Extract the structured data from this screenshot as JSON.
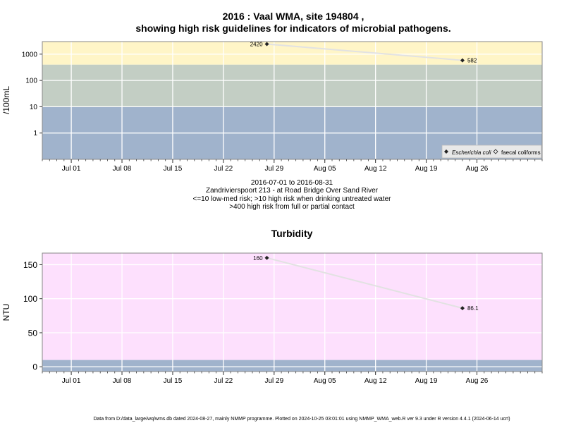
{
  "chart_data": [
    {
      "type": "scatter",
      "title_line1": "2016 : Vaal WMA, site 194804 ,",
      "title_line2": "showing high risk guidelines for indicators of microbial pathogens.",
      "ylabel": "/100mL",
      "yscale": "log",
      "yticks": [
        1,
        10,
        100,
        1000
      ],
      "ytick_labels": [
        "1",
        "10",
        "100",
        "1000"
      ],
      "ylim": [
        0.1,
        3000
      ],
      "x_ticks": [
        "Jul 01",
        "Jul 08",
        "Jul 15",
        "Jul 22",
        "Jul 29",
        "Aug 05",
        "Aug 12",
        "Aug 19",
        "Aug 26"
      ],
      "x_tick_dates": [
        "2016-07-01",
        "2016-07-08",
        "2016-07-15",
        "2016-07-22",
        "2016-07-29",
        "2016-08-05",
        "2016-08-12",
        "2016-08-19",
        "2016-08-26"
      ],
      "xlim": [
        "2016-06-27",
        "2016-09-04"
      ],
      "bands": [
        {
          "from": 0.1,
          "to": 10,
          "color": "#a0b3cc"
        },
        {
          "from": 10,
          "to": 400,
          "color": "#c3cec4"
        },
        {
          "from": 400,
          "to": 3000,
          "color": "#fff5c7"
        }
      ],
      "series": [
        {
          "name": "Escherichia coli",
          "color": "#222222",
          "points": [
            {
              "x": "2016-07-28",
              "y": 2420,
              "label": "2420"
            },
            {
              "x": "2016-08-24",
              "y": 582,
              "label": "582"
            }
          ]
        }
      ],
      "legend": {
        "placement": "bottom-right",
        "entries": [
          "Escherichia coli",
          "faecal coliforms"
        ]
      },
      "caption_lines": [
        "2016-07-01 to 2016-08-31",
        "Zandrivierspoort 213 - at Road Bridge Over Sand River",
        "<=10 low-med risk; >10 high risk when drinking untreated water",
        ">400 high risk from full or partial contact"
      ]
    },
    {
      "type": "scatter",
      "title": "Turbidity",
      "ylabel": "NTU",
      "yticks": [
        0,
        50,
        100,
        150
      ],
      "ytick_labels": [
        "0",
        "50",
        "100",
        "150"
      ],
      "ylim": [
        -7,
        167
      ],
      "x_ticks": [
        "Jul 01",
        "Jul 08",
        "Jul 15",
        "Jul 22",
        "Jul 29",
        "Aug 05",
        "Aug 12",
        "Aug 19",
        "Aug 26"
      ],
      "x_tick_dates": [
        "2016-07-01",
        "2016-07-08",
        "2016-07-15",
        "2016-07-22",
        "2016-07-29",
        "2016-08-05",
        "2016-08-12",
        "2016-08-19",
        "2016-08-26"
      ],
      "xlim": [
        "2016-06-27",
        "2016-09-04"
      ],
      "bands": [
        {
          "from": -7,
          "to": 10,
          "color": "#a0b3cc"
        },
        {
          "from": 10,
          "to": 167,
          "color": "#fde0fd"
        }
      ],
      "series": [
        {
          "color": "#222222",
          "points": [
            {
              "x": "2016-07-28",
              "y": 160,
              "label": "160"
            },
            {
              "x": "2016-08-24",
              "y": 86.1,
              "label": "86.1"
            }
          ]
        }
      ]
    }
  ],
  "footer": "Data from D:/data_large/wq/wms.db dated 2024-08-27, mainly NMMP programme. Plotted on 2024-10-25 03:01:01 using NMMP_WMA_web.R ver 9.3 under R version 4.4.1 (2024-06-14 ucrt)"
}
